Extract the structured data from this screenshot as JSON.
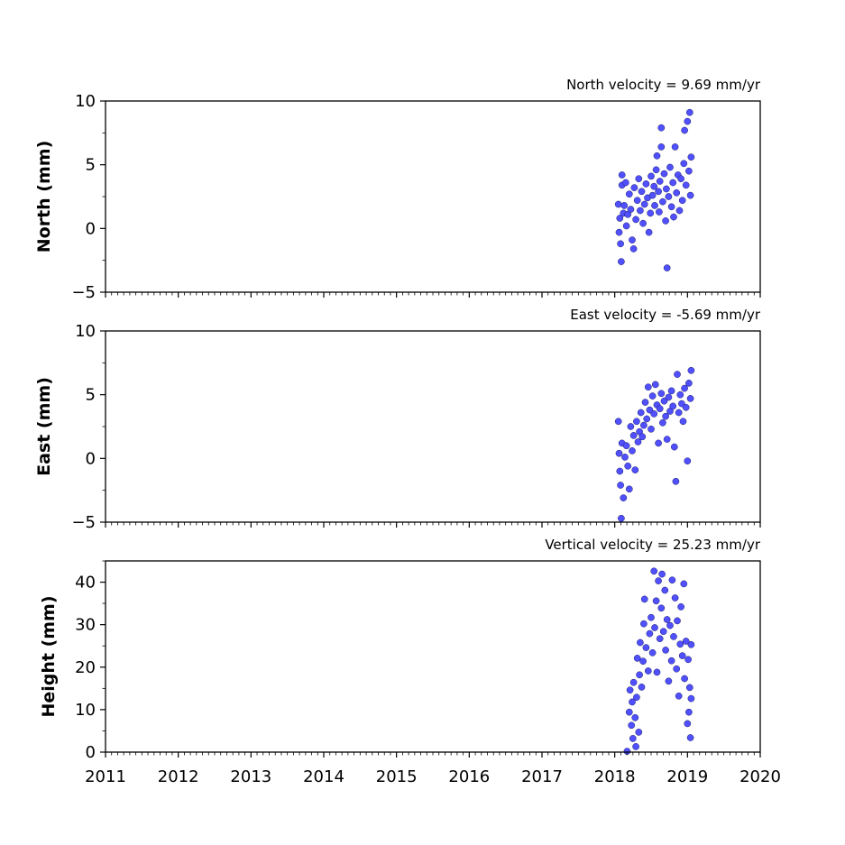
{
  "chart_data": [
    {
      "type": "scatter",
      "title": "North velocity = 9.69 mm/yr",
      "ylabel": "North (mm)",
      "xlim": [
        2011,
        2020
      ],
      "ylim": [
        -5,
        10
      ],
      "yticks": [
        10,
        5,
        0,
        -5
      ],
      "yticklabels": [
        "10",
        "5",
        "0",
        "−5"
      ],
      "component": "north",
      "marker_color": "#5050ff",
      "points": [
        {
          "x": 2018.05,
          "y": 1.9
        },
        {
          "x": 2018.06,
          "y": -0.3
        },
        {
          "x": 2018.07,
          "y": 0.8
        },
        {
          "x": 2018.08,
          "y": -1.2
        },
        {
          "x": 2018.09,
          "y": -2.6
        },
        {
          "x": 2018.1,
          "y": 4.2
        },
        {
          "x": 2018.1,
          "y": 3.4
        },
        {
          "x": 2018.12,
          "y": 1.2
        },
        {
          "x": 2018.13,
          "y": 1.8
        },
        {
          "x": 2018.15,
          "y": 3.6
        },
        {
          "x": 2018.16,
          "y": 0.2
        },
        {
          "x": 2018.18,
          "y": 1.1
        },
        {
          "x": 2018.2,
          "y": 2.7
        },
        {
          "x": 2018.22,
          "y": 1.5
        },
        {
          "x": 2018.24,
          "y": -0.9
        },
        {
          "x": 2018.26,
          "y": -1.6
        },
        {
          "x": 2018.27,
          "y": 3.2
        },
        {
          "x": 2018.29,
          "y": 0.7
        },
        {
          "x": 2018.31,
          "y": 2.2
        },
        {
          "x": 2018.33,
          "y": 3.9
        },
        {
          "x": 2018.35,
          "y": 1.4
        },
        {
          "x": 2018.37,
          "y": 2.9
        },
        {
          "x": 2018.39,
          "y": 0.4
        },
        {
          "x": 2018.41,
          "y": 1.9
        },
        {
          "x": 2018.43,
          "y": 3.5
        },
        {
          "x": 2018.45,
          "y": 2.4
        },
        {
          "x": 2018.47,
          "y": -0.3
        },
        {
          "x": 2018.49,
          "y": 1.2
        },
        {
          "x": 2018.5,
          "y": 4.1
        },
        {
          "x": 2018.52,
          "y": 2.6
        },
        {
          "x": 2018.54,
          "y": 3.3
        },
        {
          "x": 2018.55,
          "y": 1.8
        },
        {
          "x": 2018.57,
          "y": 4.6
        },
        {
          "x": 2018.58,
          "y": 5.7
        },
        {
          "x": 2018.6,
          "y": 2.9
        },
        {
          "x": 2018.61,
          "y": 1.3
        },
        {
          "x": 2018.62,
          "y": 3.7
        },
        {
          "x": 2018.64,
          "y": 6.4
        },
        {
          "x": 2018.64,
          "y": 7.9
        },
        {
          "x": 2018.66,
          "y": 2.1
        },
        {
          "x": 2018.68,
          "y": 4.3
        },
        {
          "x": 2018.7,
          "y": 0.6
        },
        {
          "x": 2018.71,
          "y": 3.1
        },
        {
          "x": 2018.72,
          "y": -3.1
        },
        {
          "x": 2018.74,
          "y": 2.5
        },
        {
          "x": 2018.76,
          "y": 4.8
        },
        {
          "x": 2018.78,
          "y": 1.7
        },
        {
          "x": 2018.8,
          "y": 3.6
        },
        {
          "x": 2018.81,
          "y": 0.9
        },
        {
          "x": 2018.83,
          "y": 6.4
        },
        {
          "x": 2018.85,
          "y": 2.8
        },
        {
          "x": 2018.87,
          "y": 4.2
        },
        {
          "x": 2018.89,
          "y": 1.4
        },
        {
          "x": 2018.91,
          "y": 3.9
        },
        {
          "x": 2018.93,
          "y": 2.2
        },
        {
          "x": 2018.95,
          "y": 5.1
        },
        {
          "x": 2018.96,
          "y": 7.7
        },
        {
          "x": 2018.98,
          "y": 3.4
        },
        {
          "x": 2019.0,
          "y": 8.4
        },
        {
          "x": 2019.02,
          "y": 4.5
        },
        {
          "x": 2019.03,
          "y": 9.1
        },
        {
          "x": 2019.04,
          "y": 2.6
        },
        {
          "x": 2019.05,
          "y": 5.6
        }
      ]
    },
    {
      "type": "scatter",
      "title": "East velocity = -5.69 mm/yr",
      "ylabel": "East (mm)",
      "xlim": [
        2011,
        2020
      ],
      "ylim": [
        -5,
        10
      ],
      "yticks": [
        10,
        5,
        0,
        -5
      ],
      "yticklabels": [
        "10",
        "5",
        "0",
        "−5"
      ],
      "component": "east",
      "marker_color": "#5050ff",
      "points": [
        {
          "x": 2018.05,
          "y": 2.9
        },
        {
          "x": 2018.06,
          "y": 0.4
        },
        {
          "x": 2018.07,
          "y": -1.0
        },
        {
          "x": 2018.08,
          "y": -2.1
        },
        {
          "x": 2018.09,
          "y": -4.7
        },
        {
          "x": 2018.1,
          "y": 1.2
        },
        {
          "x": 2018.12,
          "y": -3.1
        },
        {
          "x": 2018.14,
          "y": 0.1
        },
        {
          "x": 2018.16,
          "y": 1.0
        },
        {
          "x": 2018.18,
          "y": -0.6
        },
        {
          "x": 2018.2,
          "y": -2.4
        },
        {
          "x": 2018.22,
          "y": 2.5
        },
        {
          "x": 2018.24,
          "y": 0.6
        },
        {
          "x": 2018.26,
          "y": 1.8
        },
        {
          "x": 2018.28,
          "y": -0.9
        },
        {
          "x": 2018.3,
          "y": 2.9
        },
        {
          "x": 2018.32,
          "y": 1.3
        },
        {
          "x": 2018.34,
          "y": 2.1
        },
        {
          "x": 2018.36,
          "y": 3.6
        },
        {
          "x": 2018.38,
          "y": 1.7
        },
        {
          "x": 2018.4,
          "y": 2.6
        },
        {
          "x": 2018.42,
          "y": 4.4
        },
        {
          "x": 2018.44,
          "y": 3.1
        },
        {
          "x": 2018.46,
          "y": 5.6
        },
        {
          "x": 2018.48,
          "y": 3.8
        },
        {
          "x": 2018.5,
          "y": 2.3
        },
        {
          "x": 2018.52,
          "y": 4.9
        },
        {
          "x": 2018.54,
          "y": 3.5
        },
        {
          "x": 2018.56,
          "y": 5.8
        },
        {
          "x": 2018.58,
          "y": 4.2
        },
        {
          "x": 2018.6,
          "y": 1.2
        },
        {
          "x": 2018.62,
          "y": 3.9
        },
        {
          "x": 2018.64,
          "y": 5.1
        },
        {
          "x": 2018.66,
          "y": 2.8
        },
        {
          "x": 2018.68,
          "y": 4.5
        },
        {
          "x": 2018.7,
          "y": 3.3
        },
        {
          "x": 2018.72,
          "y": 1.5
        },
        {
          "x": 2018.74,
          "y": 4.8
        },
        {
          "x": 2018.76,
          "y": 3.7
        },
        {
          "x": 2018.78,
          "y": 5.3
        },
        {
          "x": 2018.8,
          "y": 4.1
        },
        {
          "x": 2018.82,
          "y": 0.9
        },
        {
          "x": 2018.84,
          "y": -1.8
        },
        {
          "x": 2018.86,
          "y": 6.6
        },
        {
          "x": 2018.88,
          "y": 3.6
        },
        {
          "x": 2018.9,
          "y": 5.0
        },
        {
          "x": 2018.92,
          "y": 4.3
        },
        {
          "x": 2018.94,
          "y": 2.9
        },
        {
          "x": 2018.96,
          "y": 5.5
        },
        {
          "x": 2018.98,
          "y": 4.0
        },
        {
          "x": 2019.0,
          "y": -0.2
        },
        {
          "x": 2019.02,
          "y": 5.9
        },
        {
          "x": 2019.04,
          "y": 4.7
        },
        {
          "x": 2019.05,
          "y": 6.9
        }
      ]
    },
    {
      "type": "scatter",
      "title": "Vertical velocity = 25.23 mm/yr",
      "ylabel": "Height (mm)",
      "xlim": [
        2011,
        2020
      ],
      "ylim": [
        0,
        45
      ],
      "yticks": [
        40,
        30,
        20,
        10,
        0
      ],
      "yticklabels": [
        "40",
        "30",
        "20",
        "10",
        "0"
      ],
      "xticks": [
        2011,
        2012,
        2013,
        2014,
        2015,
        2016,
        2017,
        2018,
        2019,
        2020
      ],
      "xticklabels": [
        "2011",
        "2012",
        "2013",
        "2014",
        "2015",
        "2016",
        "2017",
        "2018",
        "2019",
        "2020"
      ],
      "component": "height",
      "marker_color": "#5050ff",
      "points": [
        {
          "x": 2018.17,
          "y": 0.2
        },
        {
          "x": 2018.2,
          "y": 9.4
        },
        {
          "x": 2018.21,
          "y": 14.6
        },
        {
          "x": 2018.23,
          "y": 6.3
        },
        {
          "x": 2018.24,
          "y": 11.8
        },
        {
          "x": 2018.25,
          "y": 3.2
        },
        {
          "x": 2018.26,
          "y": 16.4
        },
        {
          "x": 2018.28,
          "y": 8.1
        },
        {
          "x": 2018.29,
          "y": 1.3
        },
        {
          "x": 2018.3,
          "y": 12.9
        },
        {
          "x": 2018.31,
          "y": 22.1
        },
        {
          "x": 2018.33,
          "y": 4.7
        },
        {
          "x": 2018.34,
          "y": 18.2
        },
        {
          "x": 2018.35,
          "y": 25.8
        },
        {
          "x": 2018.37,
          "y": 15.3
        },
        {
          "x": 2018.39,
          "y": 21.4
        },
        {
          "x": 2018.4,
          "y": 30.2
        },
        {
          "x": 2018.41,
          "y": 36.0
        },
        {
          "x": 2018.43,
          "y": 24.6
        },
        {
          "x": 2018.46,
          "y": 19.1
        },
        {
          "x": 2018.48,
          "y": 27.9
        },
        {
          "x": 2018.5,
          "y": 31.7
        },
        {
          "x": 2018.52,
          "y": 23.4
        },
        {
          "x": 2018.54,
          "y": 42.6
        },
        {
          "x": 2018.55,
          "y": 29.3
        },
        {
          "x": 2018.57,
          "y": 35.6
        },
        {
          "x": 2018.58,
          "y": 18.8
        },
        {
          "x": 2018.6,
          "y": 40.3
        },
        {
          "x": 2018.62,
          "y": 26.7
        },
        {
          "x": 2018.64,
          "y": 33.9
        },
        {
          "x": 2018.65,
          "y": 41.9
        },
        {
          "x": 2018.67,
          "y": 28.4
        },
        {
          "x": 2018.69,
          "y": 38.1
        },
        {
          "x": 2018.7,
          "y": 24.0
        },
        {
          "x": 2018.72,
          "y": 31.2
        },
        {
          "x": 2018.74,
          "y": 16.7
        },
        {
          "x": 2018.76,
          "y": 29.8
        },
        {
          "x": 2018.78,
          "y": 21.5
        },
        {
          "x": 2018.79,
          "y": 40.5
        },
        {
          "x": 2018.81,
          "y": 27.2
        },
        {
          "x": 2018.83,
          "y": 36.3
        },
        {
          "x": 2018.85,
          "y": 19.6
        },
        {
          "x": 2018.86,
          "y": 30.9
        },
        {
          "x": 2018.88,
          "y": 13.2
        },
        {
          "x": 2018.9,
          "y": 25.4
        },
        {
          "x": 2018.91,
          "y": 34.2
        },
        {
          "x": 2018.93,
          "y": 22.7
        },
        {
          "x": 2018.95,
          "y": 39.6
        },
        {
          "x": 2018.96,
          "y": 17.3
        },
        {
          "x": 2018.98,
          "y": 26.1
        },
        {
          "x": 2019.0,
          "y": 6.7
        },
        {
          "x": 2019.01,
          "y": 21.8
        },
        {
          "x": 2019.02,
          "y": 9.4
        },
        {
          "x": 2019.03,
          "y": 15.2
        },
        {
          "x": 2019.04,
          "y": 3.4
        },
        {
          "x": 2019.05,
          "y": 12.6
        },
        {
          "x": 2019.05,
          "y": 25.3
        }
      ]
    }
  ]
}
